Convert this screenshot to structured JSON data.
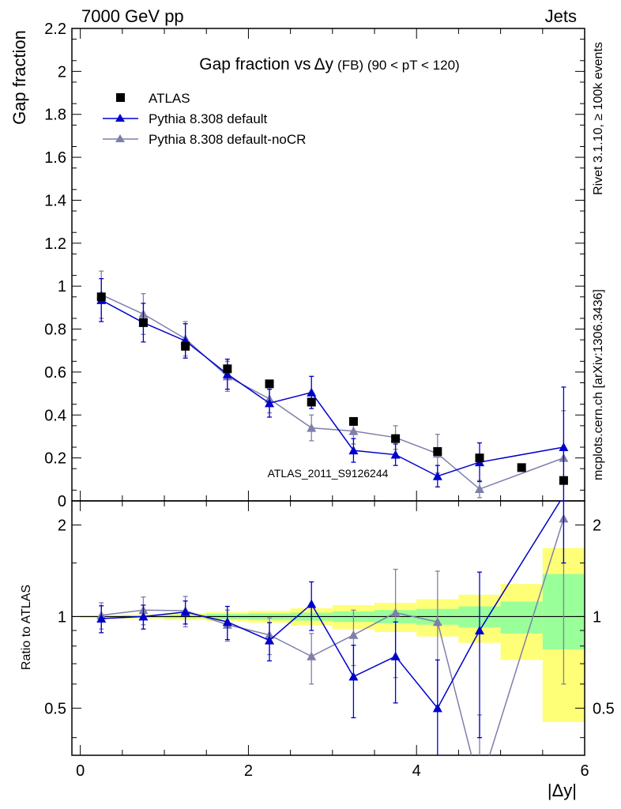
{
  "header": {
    "left": "7000 GeV pp",
    "right": "Jets"
  },
  "side_labels": {
    "rivet": "Rivet 3.1.10, ≥ 100k events",
    "mcplots": "mcplots.cern.ch [arXiv:1306.3436]"
  },
  "watermark": "ATLAS_2011_S9126244",
  "colors": {
    "atlas": "#000000",
    "default": "#0000cc",
    "nocr": "#7f7faa",
    "band_inner": "#99ff99",
    "band_outer": "#ffff77"
  },
  "chart_data": [
    {
      "type": "scatter",
      "title_main": "Gap fraction vs",
      "title_var": "Δy",
      "title_suffix": "(FB) (90 < pT < 120)",
      "ylabel": "Gap fraction",
      "xlim": [
        -0.1,
        6.0
      ],
      "ylim": [
        0,
        2.2
      ],
      "yticks": [
        "0",
        "0.2",
        "0.4",
        "0.6",
        "0.8",
        "1",
        "1.2",
        "1.4",
        "1.6",
        "1.8",
        "2",
        "2.2"
      ],
      "legend_position": "top-left",
      "x": [
        0.25,
        0.75,
        1.25,
        1.75,
        2.25,
        2.75,
        3.25,
        3.75,
        4.25,
        4.75,
        5.25,
        5.75
      ],
      "series": [
        {
          "name": "ATLAS",
          "marker": "square",
          "values": [
            0.95,
            0.83,
            0.72,
            0.615,
            0.545,
            0.46,
            0.37,
            0.29,
            0.23,
            0.2,
            0.155,
            0.095
          ]
        },
        {
          "name": "Pythia 8.308 default",
          "marker": "triangle",
          "values": [
            0.935,
            0.83,
            0.745,
            0.59,
            0.455,
            0.505,
            0.235,
            0.215,
            0.115,
            0.18,
            null,
            0.25
          ],
          "errors": [
            0.1,
            0.09,
            0.08,
            0.07,
            0.065,
            0.075,
            0.055,
            0.05,
            0.05,
            0.09,
            null,
            0.28
          ]
        },
        {
          "name": "Pythia 8.308 default-noCR",
          "marker": "triangle",
          "values": [
            0.96,
            0.87,
            0.755,
            0.58,
            0.475,
            0.34,
            0.325,
            0.295,
            0.22,
            0.055,
            null,
            0.2
          ],
          "errors": [
            0.11,
            0.095,
            0.08,
            0.07,
            0.065,
            0.06,
            0.06,
            0.055,
            0.09,
            0.04,
            null,
            0.22
          ]
        }
      ]
    },
    {
      "type": "line",
      "ylabel": "Ratio to ATLAS",
      "xlabel": "|Δy|",
      "xlim": [
        -0.1,
        6.0
      ],
      "xticks": [
        "0",
        "2",
        "4",
        "6"
      ],
      "ylim": [
        0.35,
        2.4
      ],
      "yscale": "log",
      "yticks": [
        "0.5",
        "1",
        "2"
      ],
      "x": [
        0.25,
        0.75,
        1.25,
        1.75,
        2.25,
        2.75,
        3.25,
        3.75,
        4.25,
        4.75,
        5.25,
        5.75
      ],
      "bands": {
        "edges": [
          0,
          0.5,
          1.0,
          1.5,
          2.0,
          2.5,
          3.0,
          3.5,
          4.0,
          4.5,
          5.0,
          5.5,
          6.0
        ],
        "inner_up": [
          1.005,
          1.008,
          1.012,
          1.02,
          1.025,
          1.03,
          1.04,
          1.05,
          1.06,
          1.08,
          1.12,
          1.38
        ],
        "inner_dn": [
          0.995,
          0.992,
          0.988,
          0.98,
          0.975,
          0.97,
          0.96,
          0.95,
          0.94,
          0.92,
          0.88,
          0.78
        ],
        "outer_up": [
          1.01,
          1.015,
          1.025,
          1.035,
          1.045,
          1.065,
          1.09,
          1.11,
          1.14,
          1.18,
          1.28,
          1.68
        ],
        "outer_dn": [
          0.99,
          0.985,
          0.975,
          0.965,
          0.955,
          0.935,
          0.91,
          0.89,
          0.86,
          0.82,
          0.72,
          0.45
        ]
      },
      "series": [
        {
          "name": "Pythia 8.308 default",
          "values": [
            0.985,
            1.0,
            1.035,
            0.96,
            0.835,
            1.1,
            0.635,
            0.74,
            0.5,
            0.9,
            null,
            2.5
          ],
          "errors": [
            0.1,
            0.09,
            0.09,
            0.12,
            0.12,
            0.2,
            0.17,
            0.22,
            0.22,
            0.5,
            null,
            1.0
          ]
        },
        {
          "name": "Pythia 8.308 default-noCR",
          "values": [
            1.01,
            1.05,
            1.045,
            0.94,
            0.87,
            0.74,
            0.87,
            1.03,
            0.96,
            0.275,
            null,
            2.1
          ],
          "errors": [
            0.1,
            0.11,
            0.12,
            0.11,
            0.12,
            0.14,
            0.18,
            0.4,
            0.45,
            0.2,
            null,
            1.5
          ]
        }
      ]
    }
  ]
}
